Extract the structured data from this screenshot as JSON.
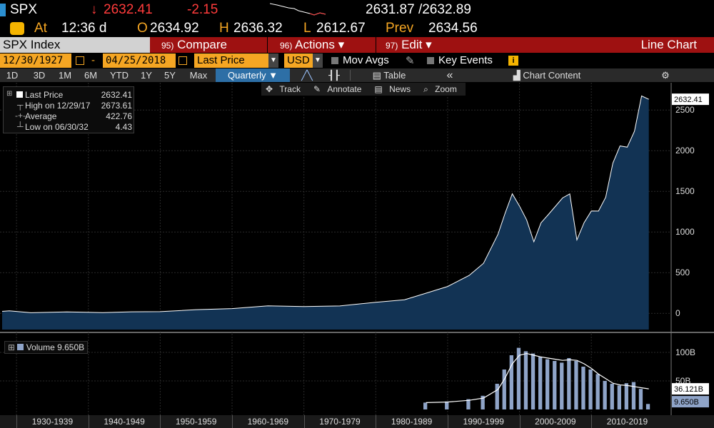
{
  "header": {
    "ticker": "SPX",
    "last": "2632.41",
    "change": "-2.15",
    "bid_ask": "2631.87 /2632.89",
    "at_label": "At",
    "time": "12:36 d",
    "open_label": "O",
    "open": "2634.92",
    "high_label": "H",
    "high": "2636.32",
    "low_label": "L",
    "low": "2612.67",
    "prev_label": "Prev",
    "prev": "2634.56"
  },
  "menubar": {
    "index": "SPX Index",
    "compare_num": "95)",
    "compare": "Compare",
    "actions_num": "96)",
    "actions": "Actions",
    "edit_num": "97)",
    "edit": "Edit",
    "chart_type": "Line Chart"
  },
  "controls": {
    "start_date": "12/30/1927",
    "end_date": "04/25/2018",
    "field": "Last Price",
    "currency": "USD",
    "mov_avgs": "Mov Avgs",
    "key_events": "Key Events"
  },
  "ranges": {
    "buttons": [
      "1D",
      "3D",
      "1M",
      "6M",
      "YTD",
      "1Y",
      "5Y",
      "Max"
    ],
    "period": "Quarterly",
    "table": "Table",
    "chart_content": "Chart Content"
  },
  "tools": [
    "Track",
    "Annotate",
    "News",
    "Zoom"
  ],
  "legend": {
    "rows": [
      {
        "label": "Last Price",
        "value": "2632.41"
      },
      {
        "label": "High on 12/29/17",
        "value": "2673.61"
      },
      {
        "label": "Average",
        "value": "422.76"
      },
      {
        "label": "Low on 06/30/32",
        "value": "4.43"
      }
    ]
  },
  "volume_legend": "Volume 9.650B",
  "colors": {
    "accent": "#f5a623",
    "menu": "#9e1111",
    "area": "#123354",
    "negative": "#ff3b3b"
  },
  "chart_data": {
    "type": "area",
    "price": {
      "x": [
        1928,
        1929,
        1932,
        1937,
        1942,
        1946,
        1950,
        1955,
        1960,
        1965,
        1970,
        1975,
        1980,
        1984,
        1987,
        1990,
        1993,
        1995,
        1997,
        1998,
        1999,
        2000,
        2001,
        2002,
        2003,
        2004,
        2006,
        2007,
        2008,
        2009,
        2010,
        2011,
        2012,
        2013,
        2014,
        2015,
        2016,
        2017,
        2018
      ],
      "values": [
        24,
        31,
        7,
        17,
        9,
        18,
        20,
        45,
        58,
        92,
        83,
        90,
        135,
        167,
        247,
        330,
        466,
        615,
        970,
        1230,
        1469,
        1320,
        1148,
        880,
        1112,
        1212,
        1418,
        1468,
        903,
        1115,
        1258,
        1257,
        1426,
        1848,
        2058,
        2043,
        2239,
        2673,
        2632
      ],
      "ylim": [
        -200,
        2800
      ],
      "yticks": [
        0,
        500,
        1000,
        1500,
        2000,
        2500
      ],
      "last_label": "2632.41"
    },
    "volume": {
      "x": [
        1987,
        1990,
        1993,
        1995,
        1997,
        1998,
        1999,
        2000,
        2001,
        2002,
        2003,
        2004,
        2005,
        2006,
        2007,
        2008,
        2009,
        2010,
        2011,
        2012,
        2013,
        2014,
        2015,
        2016,
        2017,
        2018
      ],
      "values": [
        12,
        14,
        18,
        24,
        45,
        70,
        95,
        108,
        102,
        98,
        92,
        88,
        85,
        82,
        90,
        85,
        75,
        70,
        62,
        50,
        45,
        42,
        46,
        48,
        36,
        9.65
      ],
      "ma_values": [
        12,
        13,
        16,
        20,
        35,
        55,
        80,
        95,
        98,
        95,
        92,
        90,
        88,
        86,
        87,
        86,
        80,
        72,
        62,
        54,
        46,
        43,
        42,
        40,
        38,
        36.121
      ],
      "yticks": [
        "100B",
        "50B"
      ],
      "ma_label": "36.121B",
      "last_label": "9.650B"
    },
    "x_range": [
      1927.9,
      2018.33
    ],
    "x_labels": [
      "1930-1939",
      "1940-1949",
      "1950-1959",
      "1960-1969",
      "1970-1979",
      "1980-1989",
      "1990-1999",
      "2000-2009",
      "2010-2019"
    ]
  }
}
